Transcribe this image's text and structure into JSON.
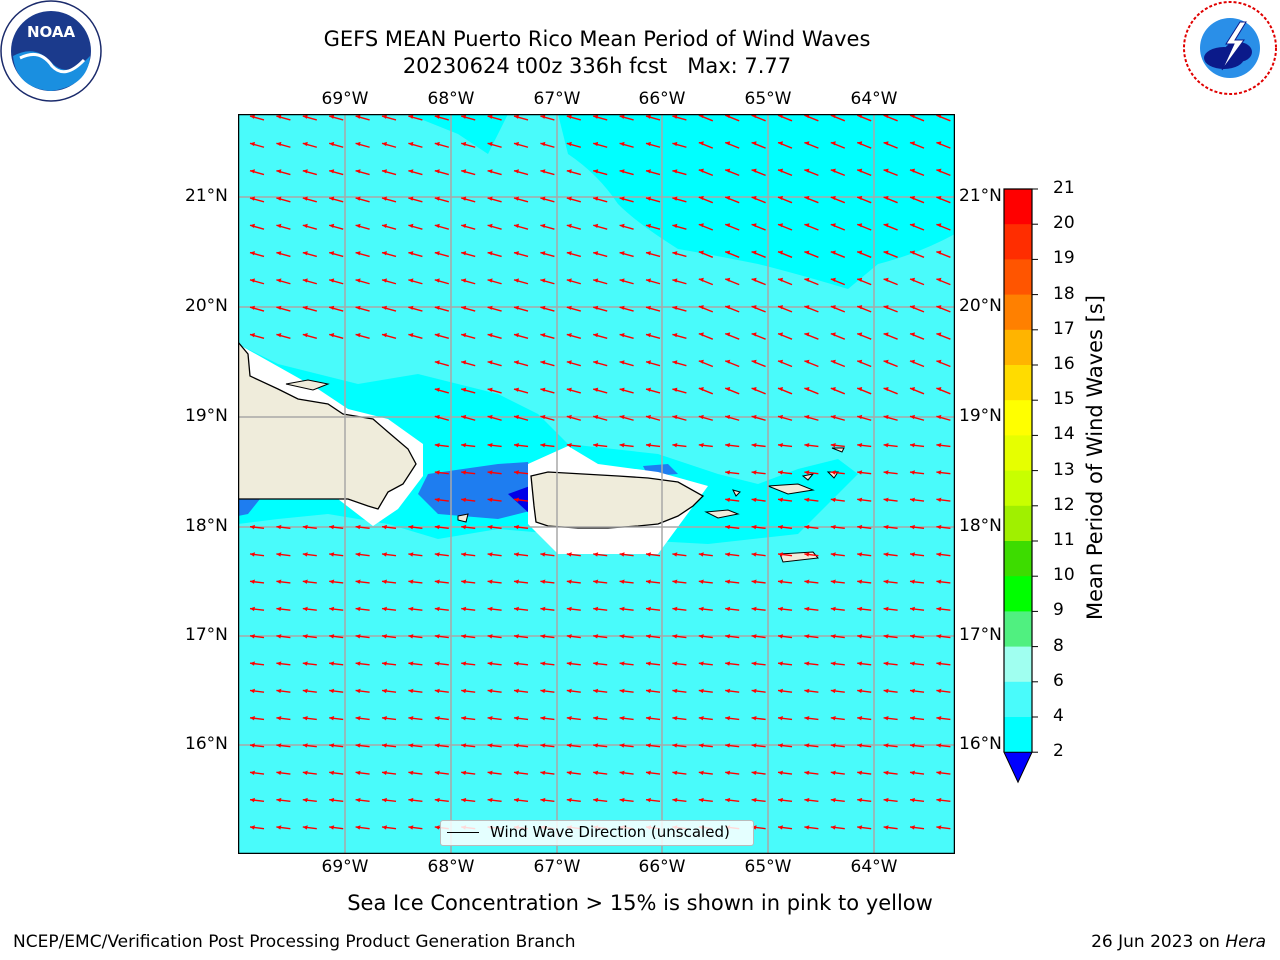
{
  "header": {
    "title_line1": "GEFS MEAN Puerto Rico Mean Period of Wind Waves",
    "title_line2": "20230624 t00z 336h fcst   Max: 7.77"
  },
  "logos": {
    "left_icon": "noaa-logo-icon",
    "right_icon": "nws-logo-icon"
  },
  "map": {
    "lon_labels": [
      "69°W",
      "68°W",
      "67°W",
      "66°W",
      "65°W",
      "64°W"
    ],
    "lat_labels": [
      "21°N",
      "20°N",
      "19°N",
      "18°N",
      "17°N",
      "16°N"
    ],
    "background_color": "#49fbfb",
    "land_color": "#efecdb",
    "arrow_color": "#ff0000",
    "legend_label": "Wind Wave Direction (unscaled)"
  },
  "colorbar": {
    "label": "Mean Period of Wind Waves [s]",
    "ticks": [
      "21",
      "20",
      "19",
      "18",
      "17",
      "16",
      "15",
      "14",
      "13",
      "12",
      "11",
      "10",
      "9",
      "8",
      "6",
      "4",
      "2"
    ],
    "colors": [
      "#ff0000",
      "#ff2d00",
      "#ff5500",
      "#ff8000",
      "#ffb400",
      "#ffdc00",
      "#ffff00",
      "#e6ff00",
      "#c8ff00",
      "#a0f000",
      "#3ddc00",
      "#00ff00",
      "#50f080",
      "#a0fff0",
      "#49fbfb",
      "#00ffff",
      "#0080ff"
    ],
    "under_color": "#0000ff"
  },
  "subnote": "Sea Ice Concentration > 15% is shown in pink to yellow",
  "footer": {
    "left": "NCEP/EMC/Verification Post Processing Product Generation Branch",
    "right_prefix": "26 Jun 2023 on ",
    "right_host": "Hera"
  }
}
